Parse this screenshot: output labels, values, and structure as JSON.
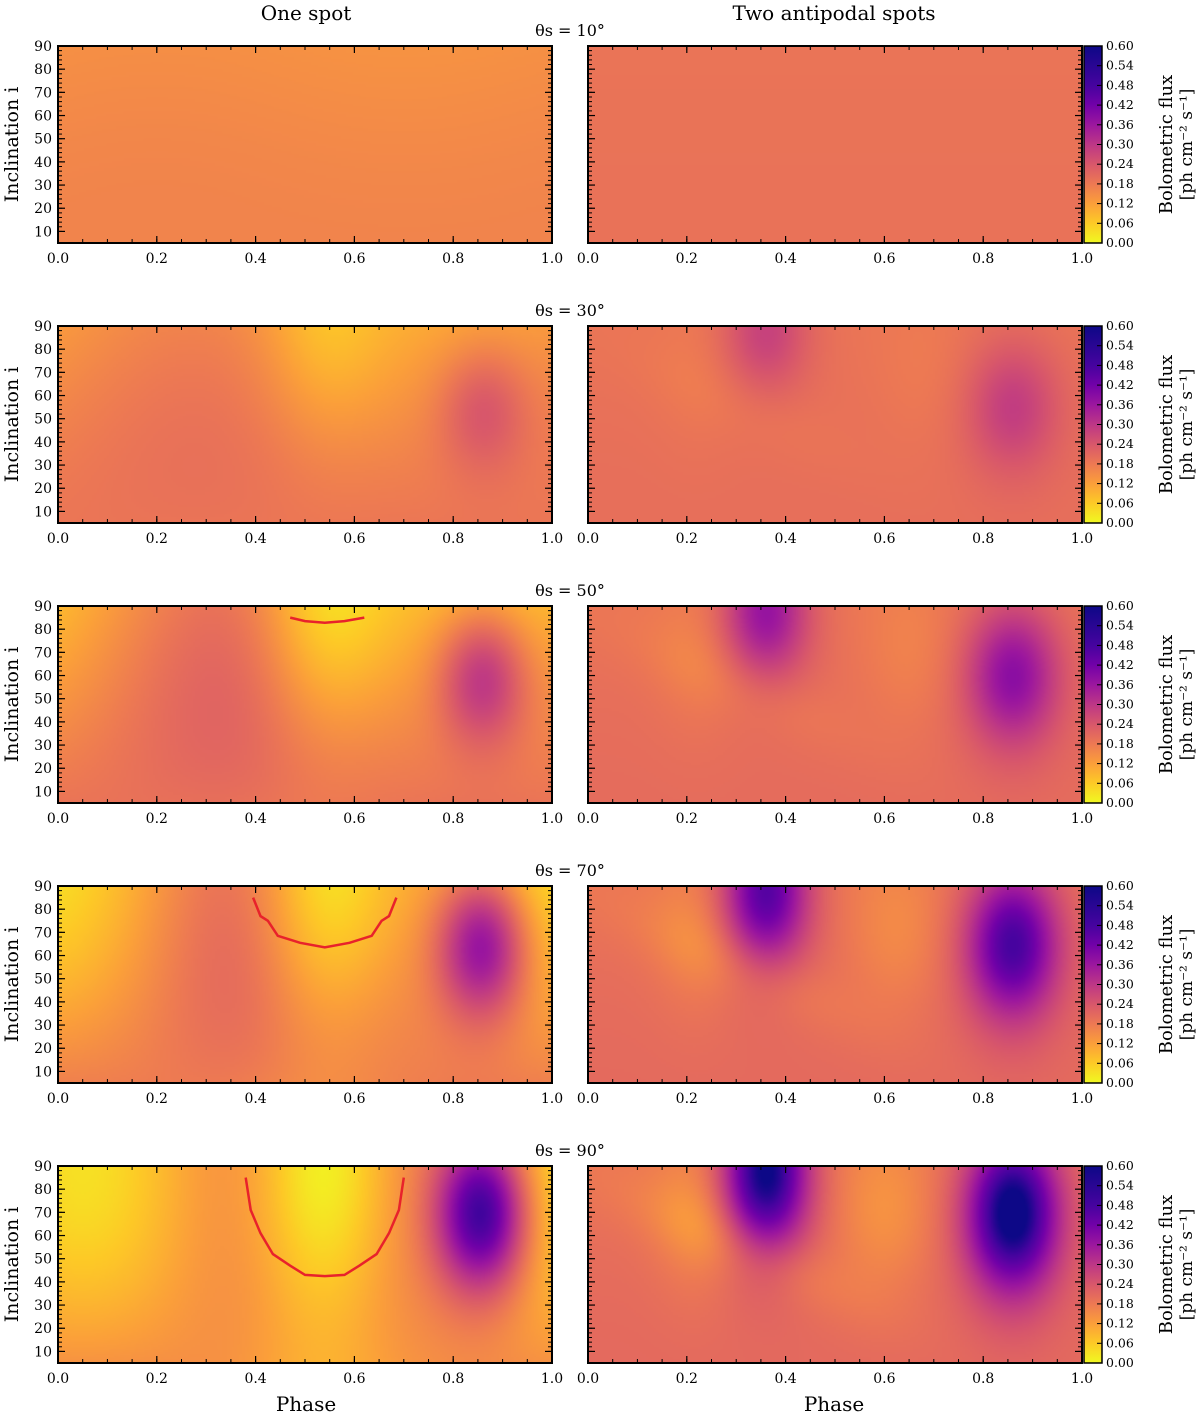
{
  "figure": {
    "column_titles": [
      "One spot",
      "Two antipodal spots"
    ]
  },
  "chart_data": {
    "type": "heatmap",
    "xlabel": "Phase",
    "ylabel": "Inclination i",
    "xlim": [
      0.0,
      1.0
    ],
    "ylim": [
      5,
      90
    ],
    "x_ticks": [
      "0.0",
      "0.2",
      "0.4",
      "0.6",
      "0.8",
      "1.0"
    ],
    "y_ticks": [
      "10",
      "20",
      "30",
      "40",
      "50",
      "60",
      "70",
      "80",
      "90"
    ],
    "colorbar": {
      "label": "Bolometric flux",
      "units": "[ph cm⁻² s⁻¹]",
      "ticks": [
        "0.00",
        "0.06",
        "0.12",
        "0.18",
        "0.24",
        "0.30",
        "0.36",
        "0.42",
        "0.48",
        "0.54",
        "0.60"
      ],
      "range": [
        0.0,
        0.6
      ],
      "colormap": "plasma_r"
    },
    "rows": [
      {
        "title": "θs = 10°",
        "theta_s": 10,
        "panels": [
          {
            "name": "One spot",
            "contour": []
          },
          {
            "name": "Two antipodal spots",
            "contour": []
          }
        ]
      },
      {
        "title": "θs = 30°",
        "theta_s": 30,
        "panels": [
          {
            "name": "One spot",
            "contour": []
          },
          {
            "name": "Two antipodal spots",
            "contour": []
          }
        ]
      },
      {
        "title": "θs = 50°",
        "theta_s": 50,
        "panels": [
          {
            "name": "One spot",
            "contour": [
              [
                0.47,
                85
              ],
              [
                0.5,
                83.5
              ],
              [
                0.54,
                82.8
              ],
              [
                0.58,
                83.5
              ],
              [
                0.62,
                85
              ]
            ]
          },
          {
            "name": "Two antipodal spots",
            "contour": []
          }
        ]
      },
      {
        "title": "θs = 70°",
        "theta_s": 70,
        "panels": [
          {
            "name": "One spot",
            "contour": [
              [
                0.395,
                85
              ],
              [
                0.41,
                77
              ],
              [
                0.425,
                75
              ],
              [
                0.445,
                68.5
              ],
              [
                0.49,
                65.5
              ],
              [
                0.54,
                63.5
              ],
              [
                0.59,
                65.5
              ],
              [
                0.635,
                68.5
              ],
              [
                0.655,
                75
              ],
              [
                0.67,
                77
              ],
              [
                0.685,
                85
              ]
            ]
          },
          {
            "name": "Two antipodal spots",
            "contour": []
          }
        ]
      },
      {
        "title": "θs = 90°",
        "theta_s": 90,
        "panels": [
          {
            "name": "One spot",
            "contour": [
              [
                0.38,
                85
              ],
              [
                0.39,
                71
              ],
              [
                0.41,
                61
              ],
              [
                0.435,
                52
              ],
              [
                0.47,
                47
              ],
              [
                0.5,
                43
              ],
              [
                0.54,
                42.5
              ],
              [
                0.58,
                43
              ],
              [
                0.61,
                47
              ],
              [
                0.645,
                52
              ],
              [
                0.67,
                61
              ],
              [
                0.69,
                71
              ],
              [
                0.7,
                85
              ]
            ]
          },
          {
            "name": "Two antipodal spots",
            "contour": []
          }
        ]
      }
    ]
  }
}
